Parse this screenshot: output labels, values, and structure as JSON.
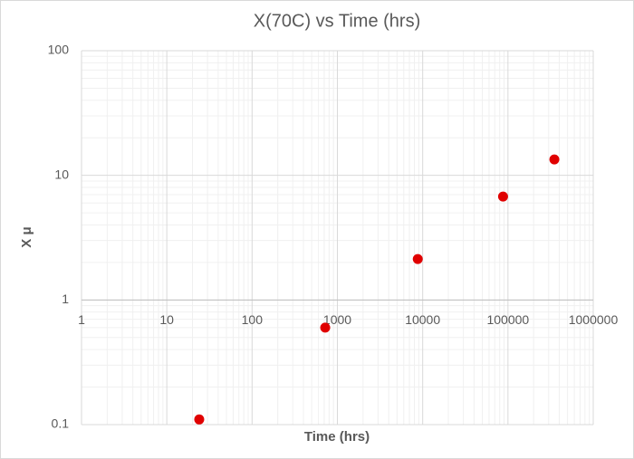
{
  "chart_data": {
    "type": "scatter",
    "title": "X(70C) vs Time (hrs)",
    "x_label": "Time (hrs)",
    "y_label": "X μ",
    "x_log": true,
    "y_log": true,
    "xlim": [
      1,
      1000000
    ],
    "ylim": [
      0.1,
      100
    ],
    "xticks": [
      1,
      10,
      100,
      1000,
      10000,
      100000,
      1000000
    ],
    "yticks": [
      0.1,
      1,
      10,
      100
    ],
    "x_axis_crosses": 1,
    "grid": true,
    "minor_grid": true,
    "series": [
      {
        "color": "#e00000",
        "x": [
          24,
          720,
          8760,
          87600,
          350000
        ],
        "values": [
          0.11,
          0.6,
          2.13,
          6.76,
          13.4
        ]
      }
    ]
  }
}
